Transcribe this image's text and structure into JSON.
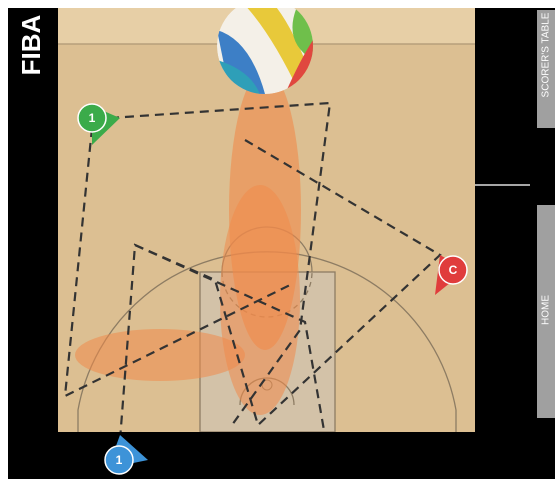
{
  "logo": "FIBA",
  "side_labels": {
    "scorers_table": "SCORER'S TABLE",
    "home": "HOME"
  },
  "players": [
    {
      "label": "1",
      "color": "#3bab4a"
    },
    {
      "label": "C",
      "color": "#e03c3c"
    },
    {
      "label": "1",
      "color": "#3d93d8"
    }
  ]
}
